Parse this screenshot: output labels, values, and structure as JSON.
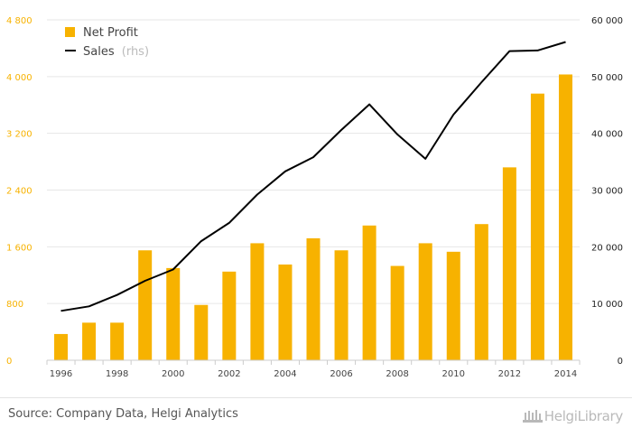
{
  "chart_data": {
    "type": "bar+line",
    "categories": [
      "1996",
      "1997",
      "1998",
      "1999",
      "2000",
      "2001",
      "2002",
      "2003",
      "2004",
      "2005",
      "2006",
      "2007",
      "2008",
      "2009",
      "2010",
      "2011",
      "2012",
      "2013",
      "2014"
    ],
    "x_tick_labels": [
      "1996",
      "1998",
      "2000",
      "2002",
      "2004",
      "2006",
      "2008",
      "2010",
      "2012",
      "2014"
    ],
    "series": [
      {
        "name": "Net Profit",
        "kind": "bar",
        "axis": "left",
        "color": "#f7b200",
        "values": [
          370,
          530,
          530,
          1550,
          1300,
          780,
          1250,
          1650,
          1350,
          1720,
          1550,
          1900,
          1330,
          1650,
          1530,
          1920,
          2720,
          3760,
          4030
        ]
      },
      {
        "name": "Sales",
        "name_suffix": "(rhs)",
        "kind": "line",
        "axis": "right",
        "color": "#000000",
        "values": [
          8700,
          9500,
          11500,
          14000,
          16000,
          21000,
          24200,
          29200,
          33300,
          35800,
          40600,
          45100,
          39800,
          35500,
          43300,
          49000,
          54500,
          54600,
          56100
        ]
      }
    ],
    "y_left": {
      "min": 0,
      "max": 4800,
      "ticks": [
        "0",
        "800",
        "1 600",
        "2 400",
        "3 200",
        "4 000",
        "4 800"
      ],
      "tick_values": [
        0,
        800,
        1600,
        2400,
        3200,
        4000,
        4800
      ],
      "color": "#f7b200"
    },
    "y_right": {
      "min": 0,
      "max": 60000,
      "ticks": [
        "0",
        "10 000",
        "20 000",
        "30 000",
        "40 000",
        "50 000",
        "60 000"
      ],
      "tick_values": [
        0,
        10000,
        20000,
        30000,
        40000,
        50000,
        60000
      ],
      "color": "#222222"
    },
    "grid": true,
    "legend_position": "top-left"
  },
  "footer": {
    "source": "Source: Company Data, Helgi Analytics",
    "logo_text": "HelgiLibrary"
  }
}
